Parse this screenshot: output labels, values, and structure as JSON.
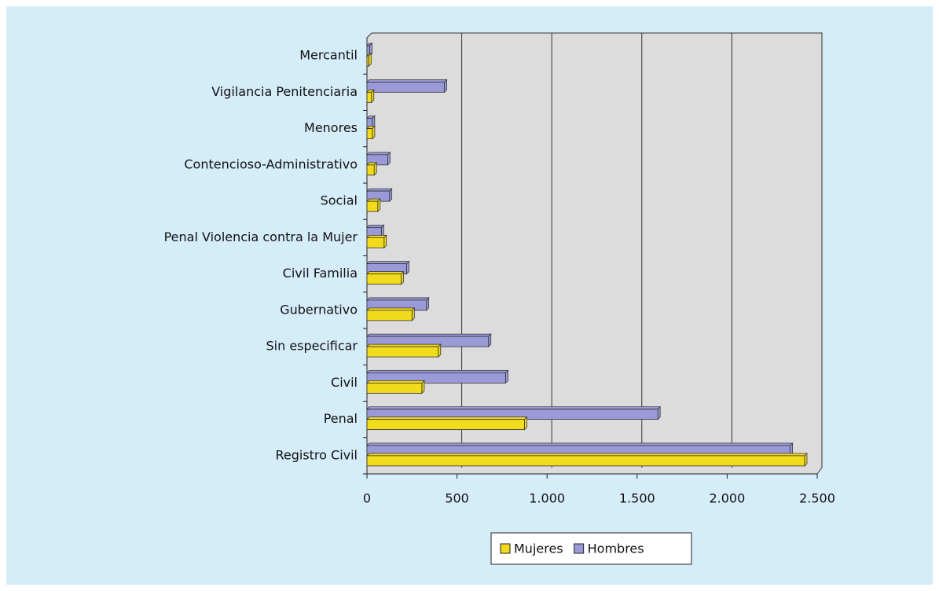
{
  "chart_data": {
    "type": "bar",
    "orientation": "horizontal",
    "categories": [
      "Registro Civil",
      "Penal",
      "Civil",
      "Sin especificar",
      "Gubernativo",
      "Civil Familia",
      "Penal Violencia contra la Mujer",
      "Social",
      "Contencioso-Administrativo",
      "Menores",
      "Vigilancia Penitenciaria",
      "Mercantil"
    ],
    "series": [
      {
        "name": "Mujeres",
        "color": "#f2da1c",
        "values": [
          2430,
          875,
          305,
          396,
          250,
          190,
          95,
          60,
          40,
          30,
          25,
          10
        ]
      },
      {
        "name": "Hombres",
        "color": "#9a9ad8",
        "values": [
          2350,
          1615,
          770,
          675,
          330,
          220,
          80,
          125,
          115,
          30,
          430,
          15
        ]
      }
    ],
    "xlim": [
      0,
      2500
    ],
    "xticks": [
      0,
      500,
      {
        "value": 1000,
        "label": "1.000"
      },
      {
        "value": 1500,
        "label": "1.500"
      },
      {
        "value": 2000,
        "label": "2.000"
      },
      {
        "value": 2500,
        "label": "2.500"
      }
    ],
    "grid": true,
    "legend": "bottom"
  }
}
